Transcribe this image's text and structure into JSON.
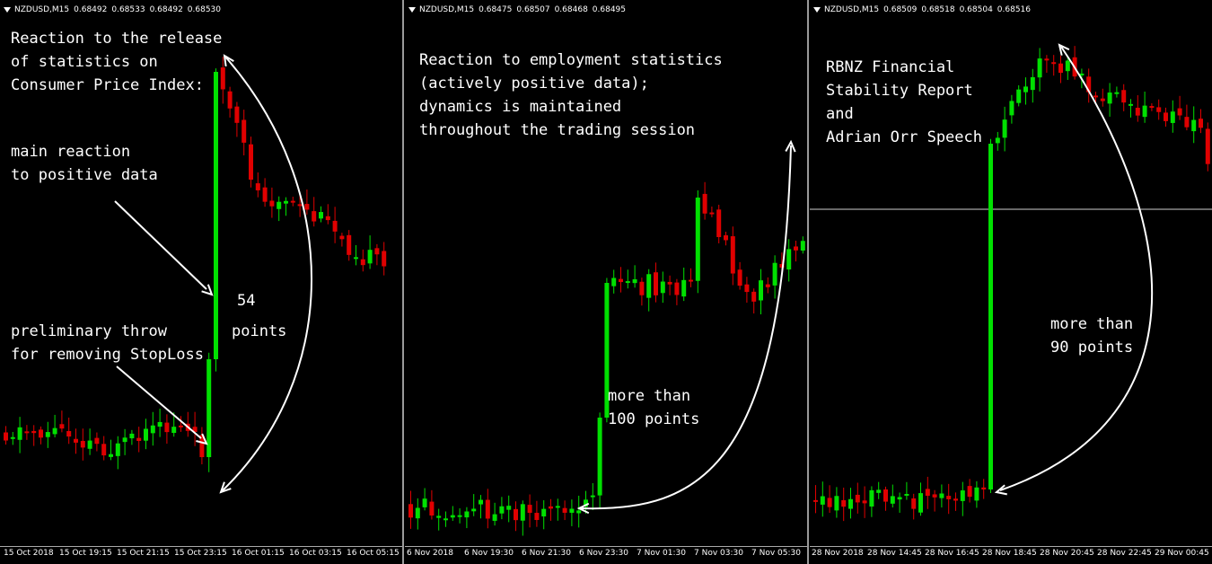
{
  "colors": {
    "bull": "#00e000",
    "bear": "#e00000",
    "background": "#000000",
    "text": "#ffffff",
    "arrow": "#ffffff"
  },
  "panels": [
    {
      "symbol": "NZDUSD,M15",
      "quotes": [
        "0.68492",
        "0.68533",
        "0.68492",
        "0.68530"
      ],
      "ticks": [
        "15 Oct 2018",
        "15 Oct 19:15",
        "15 Oct 21:15",
        "15 Oct 23:15",
        "16 Oct 01:15",
        "16 Oct 03:15",
        "16 Oct 05:15"
      ],
      "annotations": [
        "Reaction to the release",
        "of statistics on",
        "Consumer Price Index:",
        "main reaction",
        "to positive data",
        "54",
        "points",
        "preliminary throw",
        "for removing StopLoss"
      ]
    },
    {
      "symbol": "NZDUSD,M15",
      "quotes": [
        "0.68475",
        "0.68507",
        "0.68468",
        "0.68495"
      ],
      "ticks": [
        "6 Nov 2018",
        "6 Nov 19:30",
        "6 Nov 21:30",
        "6 Nov 23:30",
        "7 Nov 01:30",
        "7 Nov 03:30",
        "7 Nov 05:30"
      ],
      "annotations": [
        "Reaction to employment statistics",
        "(actively positive data);",
        "dynamics is maintained",
        "throughout the trading session",
        "more than",
        "100 points"
      ]
    },
    {
      "symbol": "NZDUSD,M15",
      "quotes": [
        "0.68509",
        "0.68518",
        "0.68504",
        "0.68516"
      ],
      "ticks": [
        "28 Nov 2018",
        "28 Nov 14:45",
        "28 Nov 16:45",
        "28 Nov 18:45",
        "28 Nov 20:45",
        "28 Nov 22:45",
        "29 Nov 00:45"
      ],
      "annotations": [
        "RBNZ Financial",
        "Stability Report",
        "and",
        "Adrian Orr Speech",
        "more than",
        "90 points"
      ]
    }
  ]
}
